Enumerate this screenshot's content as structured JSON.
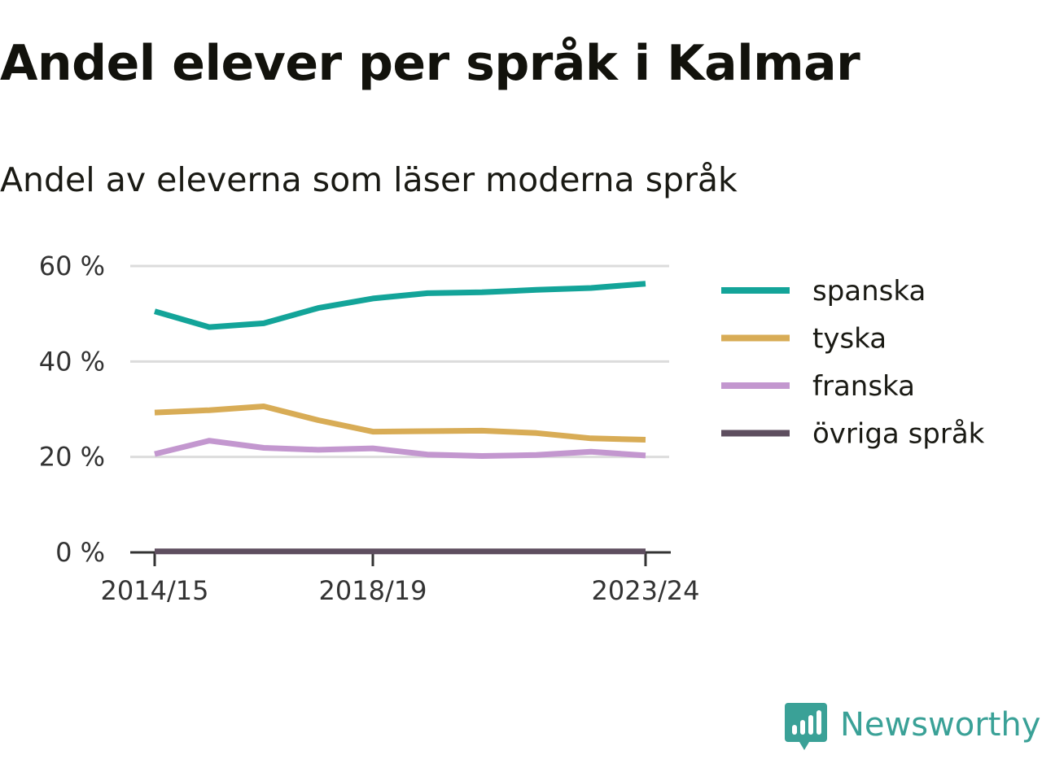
{
  "chart_data": {
    "type": "line",
    "title": "Andel elever per språk i Kalmar",
    "subtitle": "Andel av eleverna som läser moderna språk",
    "xlabel": "",
    "ylabel": "",
    "x": [
      "2014/15",
      "2015/16",
      "2016/17",
      "2017/18",
      "2018/19",
      "2019/20",
      "2020/21",
      "2021/22",
      "2022/23",
      "2023/24"
    ],
    "x_tick_labels": [
      "2014/15",
      "2018/19",
      "2023/24"
    ],
    "y_ticks": [
      0,
      20,
      40,
      60
    ],
    "y_tick_labels": [
      "0 %",
      "20 %",
      "40 %",
      "60 %"
    ],
    "ylim": [
      0,
      60
    ],
    "grid": true,
    "legend_position": "right",
    "series": [
      {
        "name": "spanska",
        "color": "#13a499",
        "values": [
          50.5,
          47.2,
          48.0,
          51.2,
          53.2,
          54.3,
          54.5,
          55.0,
          55.4,
          56.3
        ]
      },
      {
        "name": "tyska",
        "color": "#d8ac56",
        "values": [
          29.3,
          29.8,
          30.6,
          27.7,
          25.3,
          25.4,
          25.5,
          25.0,
          23.9,
          23.6
        ]
      },
      {
        "name": "franska",
        "color": "#c397cf",
        "values": [
          20.6,
          23.4,
          21.9,
          21.5,
          21.8,
          20.5,
          20.2,
          20.4,
          21.1,
          20.3
        ]
      },
      {
        "name": "övriga språk",
        "color": "#5e4e5f",
        "values": [
          0.2,
          0.2,
          0.2,
          0.2,
          0.2,
          0.2,
          0.2,
          0.2,
          0.2,
          0.2
        ]
      }
    ]
  },
  "brand": {
    "name": "Newsworthy",
    "icon": "newsworthy-logo-icon",
    "color": "#3aa197"
  }
}
